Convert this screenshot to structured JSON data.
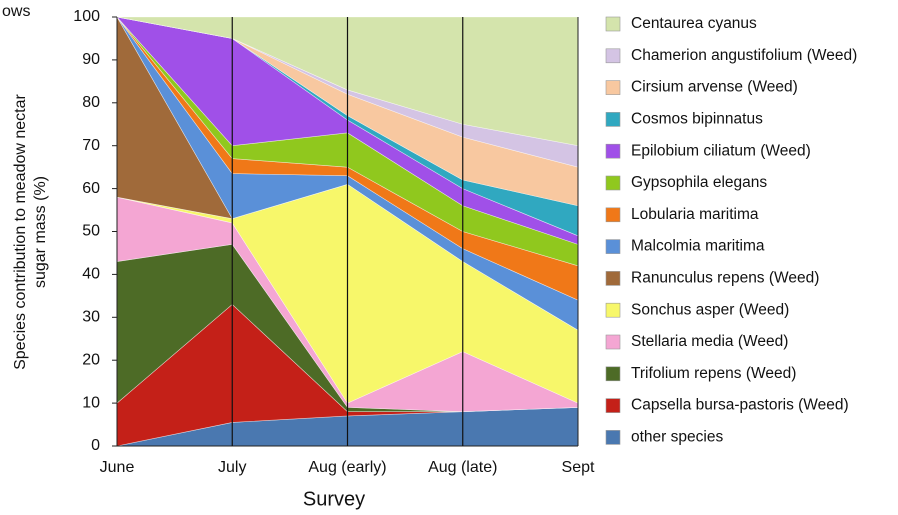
{
  "chart_data": {
    "type": "stacked-area",
    "title": "ows",
    "ylabel": [
      "Species contribution to meadow  nectar",
      "sugar mass (%)"
    ],
    "xlabel": "Survey",
    "categories": [
      "June",
      "July",
      "Aug (early)",
      "Aug (late)",
      "Sept"
    ],
    "ylim": [
      0,
      100
    ],
    "yticks": [
      0,
      10,
      20,
      30,
      40,
      50,
      60,
      70,
      80,
      90,
      100
    ],
    "xgrid": true,
    "legend": "right",
    "series": [
      {
        "name": "other species",
        "color": "#4a78b0",
        "values": [
          0,
          5.5,
          7,
          8,
          9
        ]
      },
      {
        "name": "Capsella bursa-pastoris (Weed)",
        "color": "#c42018",
        "values": [
          10,
          27.5,
          1,
          0,
          0
        ]
      },
      {
        "name": "Trifolium repens (Weed)",
        "color": "#4d6b26",
        "values": [
          33,
          14,
          1,
          0,
          0
        ]
      },
      {
        "name": "Stellaria media (Weed)",
        "color": "#f4a6d3",
        "values": [
          15,
          5,
          1,
          14,
          1
        ]
      },
      {
        "name": "Sonchus asper (Weed)",
        "color": "#f7f76a",
        "values": [
          0,
          1,
          51,
          21,
          17
        ]
      },
      {
        "name": "Ranunculus repens (Weed)",
        "color": "#a06a3a",
        "values": [
          42,
          0,
          0,
          0,
          0
        ]
      },
      {
        "name": "Malcolmia maritima",
        "color": "#5a90d8",
        "values": [
          0,
          10.5,
          2,
          3,
          7
        ]
      },
      {
        "name": "Lobularia maritima",
        "color": "#f07818",
        "values": [
          0,
          3.5,
          2,
          4,
          8
        ]
      },
      {
        "name": "Gypsophila elegans",
        "color": "#90c81e",
        "values": [
          0,
          3,
          8,
          6,
          5
        ]
      },
      {
        "name": "Epilobium ciliatum (Weed)",
        "color": "#a050e8",
        "values": [
          0,
          25,
          3,
          4,
          2
        ]
      },
      {
        "name": "Cosmos bipinnatus",
        "color": "#30a8c0",
        "values": [
          0,
          0,
          1,
          2,
          7
        ]
      },
      {
        "name": "Cirsium arvense (Weed)",
        "color": "#f8c8a0",
        "values": [
          0,
          0,
          5,
          10,
          9
        ]
      },
      {
        "name": "Chamerion angustifolium (Weed)",
        "color": "#d4c4e4",
        "values": [
          0,
          0,
          1,
          3,
          5
        ]
      },
      {
        "name": "Centaurea cyanus",
        "color": "#d4e4ac",
        "values": [
          0,
          5,
          17,
          25,
          30
        ]
      }
    ]
  }
}
